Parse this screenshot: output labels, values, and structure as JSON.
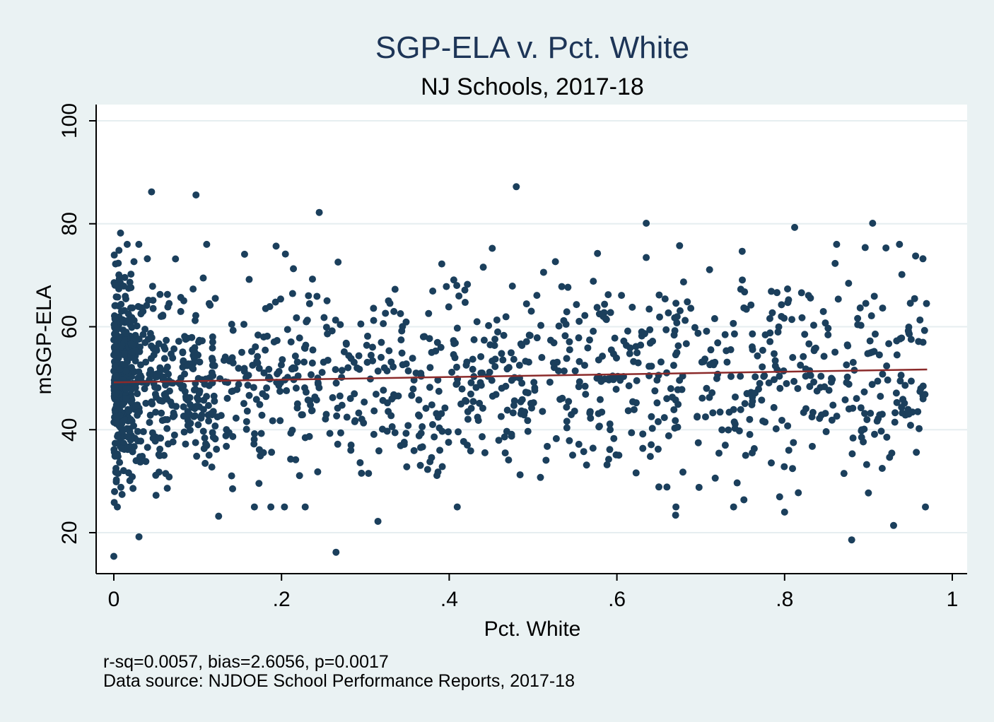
{
  "chart_data": {
    "type": "scatter",
    "title": "SGP-ELA v. Pct. White",
    "subtitle": "NJ Schools, 2017-18",
    "xlabel": "Pct. White",
    "ylabel": "mSGP-ELA",
    "xlim": [
      0,
      1
    ],
    "ylim": [
      15,
      100
    ],
    "x_ticks": [
      {
        "value": 0,
        "label": "0"
      },
      {
        "value": 0.2,
        "label": ".2"
      },
      {
        "value": 0.4,
        "label": ".4"
      },
      {
        "value": 0.6,
        "label": ".6"
      },
      {
        "value": 0.8,
        "label": ".8"
      },
      {
        "value": 1,
        "label": "1"
      }
    ],
    "y_ticks": [
      {
        "value": 20,
        "label": "20"
      },
      {
        "value": 40,
        "label": "40"
      },
      {
        "value": 60,
        "label": "60"
      },
      {
        "value": 80,
        "label": "80"
      },
      {
        "value": 100,
        "label": "100"
      }
    ],
    "grid": true,
    "point_color": "#1b3f5c",
    "fit_line_color": "#8b2a2a",
    "fit_line": {
      "x": [
        0,
        0.97
      ],
      "y": [
        49.2,
        51.7
      ]
    },
    "notable_points": [
      {
        "x": 0.0,
        "y": 15.4
      },
      {
        "x": 0.045,
        "y": 86.2
      },
      {
        "x": 0.098,
        "y": 85.6
      },
      {
        "x": 0.245,
        "y": 82.2
      },
      {
        "x": 0.265,
        "y": 16.2
      },
      {
        "x": 0.48,
        "y": 87.2
      },
      {
        "x": 0.635,
        "y": 80.1
      },
      {
        "x": 0.905,
        "y": 80.1
      },
      {
        "x": 0.88,
        "y": 18.6
      },
      {
        "x": 0.93,
        "y": 21.4
      },
      {
        "x": 0.965,
        "y": 73.2
      },
      {
        "x": 0.67,
        "y": 23.4
      },
      {
        "x": 0.315,
        "y": 22.2
      },
      {
        "x": 0.03,
        "y": 19.2
      },
      {
        "x": 0.008,
        "y": 78.2
      },
      {
        "x": 0.8,
        "y": 24.0
      },
      {
        "x": 0.812,
        "y": 79.3
      },
      {
        "x": 0.125,
        "y": 23.2
      }
    ],
    "cloud": {
      "n_points": 1500,
      "x_range": [
        0,
        0.97
      ],
      "y_mean_at_x0": 49.2,
      "y_mean_at_x1": 51.7,
      "y_sd": 9.5,
      "dense_near_zero": true
    }
  },
  "footnote": {
    "stats": "r-sq=0.0057, bias=2.6056, p=0.0017",
    "source": "Data source: NJDOE School Performance Reports, 2017-18"
  }
}
